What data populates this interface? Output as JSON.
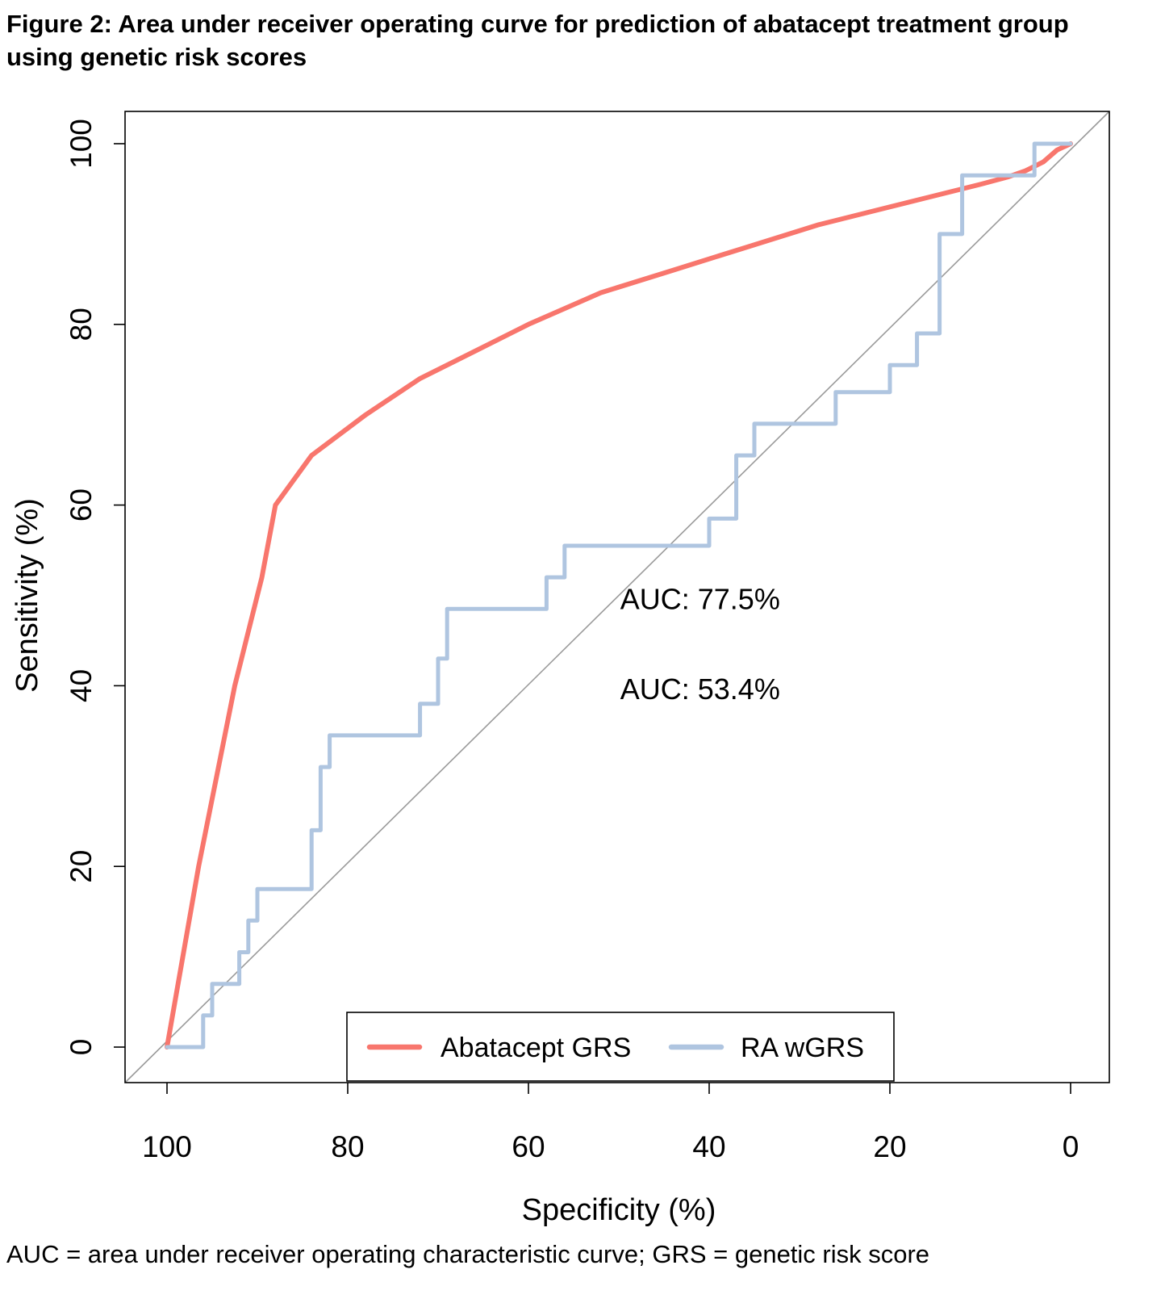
{
  "page": {
    "title_line1": "Figure 2: Area under receiver operating curve for prediction of abatacept treatment group",
    "title_line2": "using genetic risk scores",
    "footnote": "AUC = area under receiver operating characteristic curve; GRS = genetic risk score"
  },
  "chart_data": {
    "type": "line",
    "subtype": "roc-curve",
    "title": "",
    "xlabel": "Specificity (%)",
    "ylabel": "Sensitivity (%)",
    "x_axis_reversed": true,
    "xlim": [
      100,
      0
    ],
    "ylim": [
      0,
      100
    ],
    "grid": false,
    "x_ticks": [
      100,
      80,
      60,
      40,
      20,
      0
    ],
    "y_ticks": [
      0,
      20,
      40,
      60,
      80,
      100
    ],
    "reference_line": {
      "type": "chance-diagonal",
      "color": "#9a9a9a",
      "description": "diagonal from (100,0) to (0,100)"
    },
    "series": [
      {
        "name": "Abatacept GRS",
        "color": "#F8766D",
        "auc": 77.5,
        "points": [
          [
            100,
            0
          ],
          [
            96.5,
            20
          ],
          [
            92.5,
            40
          ],
          [
            89.5,
            52
          ],
          [
            88,
            60
          ],
          [
            84,
            65.5
          ],
          [
            78,
            70
          ],
          [
            72,
            74
          ],
          [
            66,
            77
          ],
          [
            60,
            80
          ],
          [
            52,
            83.5
          ],
          [
            44,
            86
          ],
          [
            36,
            88.5
          ],
          [
            28,
            91
          ],
          [
            22,
            92.5
          ],
          [
            16,
            94
          ],
          [
            10,
            95.5
          ],
          [
            7,
            96.3
          ],
          [
            5,
            97
          ],
          [
            3,
            98
          ],
          [
            1.5,
            99.3
          ],
          [
            0,
            100
          ]
        ]
      },
      {
        "name": "RA wGRS",
        "color": "#AFC5E0",
        "auc": 53.4,
        "points": [
          [
            100,
            0
          ],
          [
            96,
            0
          ],
          [
            96,
            3.5
          ],
          [
            95,
            3.5
          ],
          [
            95,
            7
          ],
          [
            92,
            7
          ],
          [
            92,
            10.5
          ],
          [
            91,
            10.5
          ],
          [
            91,
            14
          ],
          [
            90,
            14
          ],
          [
            90,
            17.5
          ],
          [
            84,
            17.5
          ],
          [
            84,
            24
          ],
          [
            83,
            24
          ],
          [
            83,
            31
          ],
          [
            82,
            31
          ],
          [
            82,
            34.5
          ],
          [
            72,
            34.5
          ],
          [
            72,
            38
          ],
          [
            70,
            38
          ],
          [
            70,
            43
          ],
          [
            69,
            43
          ],
          [
            69,
            48.5
          ],
          [
            58,
            48.5
          ],
          [
            58,
            52
          ],
          [
            56,
            52
          ],
          [
            56,
            55.5
          ],
          [
            40,
            55.5
          ],
          [
            40,
            58.5
          ],
          [
            37,
            58.5
          ],
          [
            37,
            65.5
          ],
          [
            35,
            65.5
          ],
          [
            35,
            69
          ],
          [
            26,
            69
          ],
          [
            26,
            72.5
          ],
          [
            20,
            72.5
          ],
          [
            20,
            75.5
          ],
          [
            17,
            75.5
          ],
          [
            17,
            79
          ],
          [
            14.5,
            79
          ],
          [
            14.5,
            90
          ],
          [
            12,
            90
          ],
          [
            12,
            96.5
          ],
          [
            4,
            96.5
          ],
          [
            4,
            100
          ],
          [
            0,
            100
          ]
        ]
      }
    ],
    "annotations": [
      {
        "text": "AUC: 77.5%",
        "x": 41,
        "y": 48.5,
        "color": "#F8766D"
      },
      {
        "text": "AUC: 53.4%",
        "x": 41,
        "y": 38.5,
        "color": "#AFC5E0"
      }
    ],
    "legend": {
      "position": "bottom-center-inside",
      "entries": [
        {
          "label": "Abatacept GRS",
          "color": "#F8766D"
        },
        {
          "label": "RA wGRS",
          "color": "#AFC5E0"
        }
      ]
    }
  }
}
